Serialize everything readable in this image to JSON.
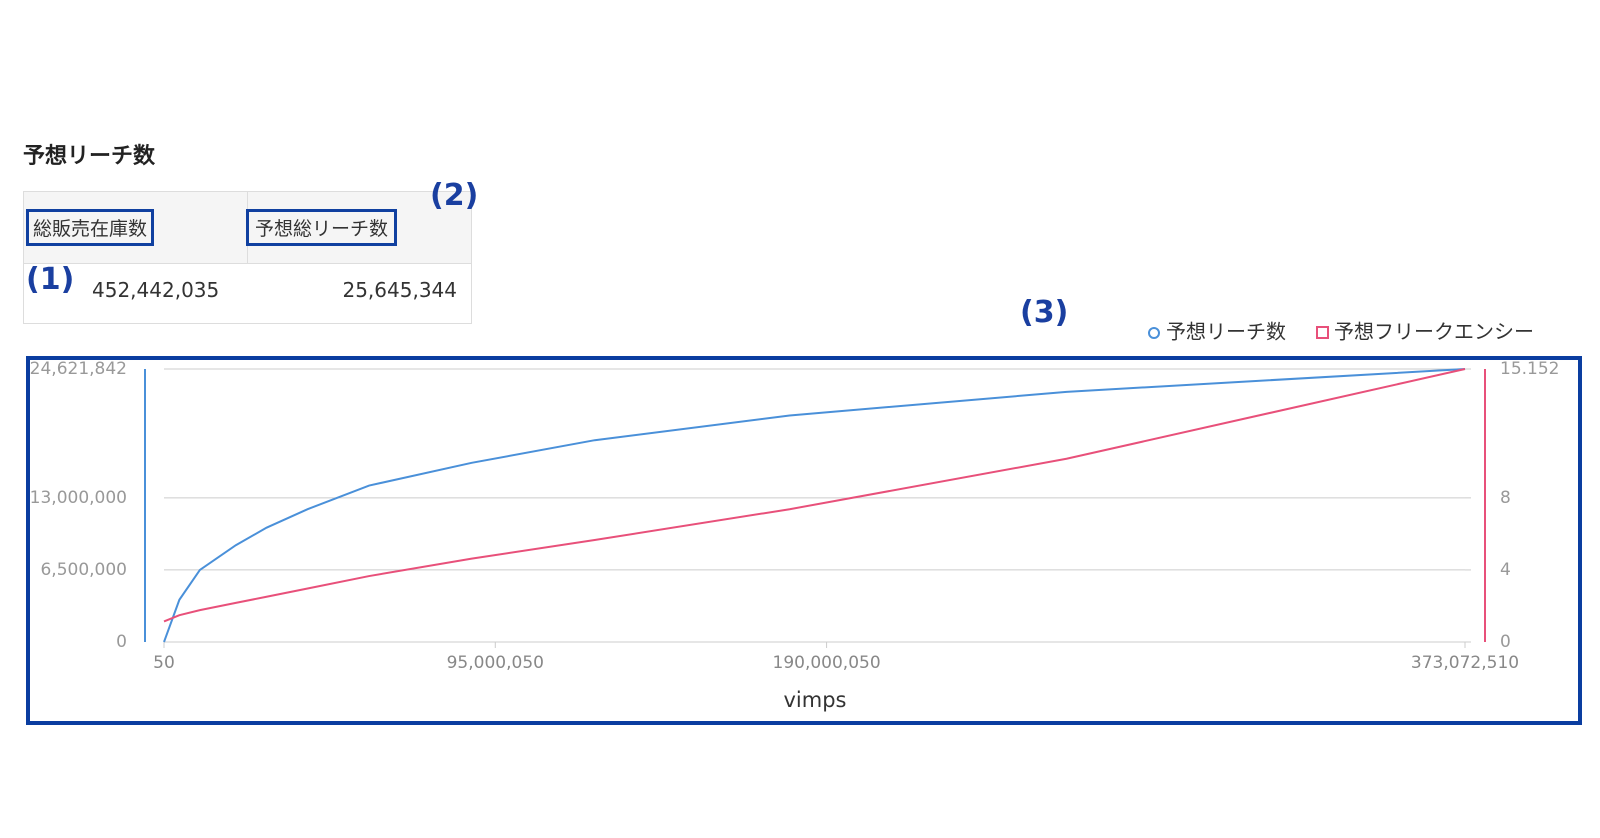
{
  "header": {
    "title": "予想リーチ数"
  },
  "table": {
    "headers": [
      "総販売在庫数",
      "予想総リーチ数"
    ],
    "rows": [
      [
        "452,442,035",
        "25,645,344"
      ]
    ]
  },
  "annotations": [
    "(1)",
    "(2)",
    "(3)"
  ],
  "chart_data": {
    "type": "line",
    "xlabel": "vimps",
    "x": [
      50,
      4410000,
      10290000,
      20590000,
      29410000,
      41180000,
      58820000,
      88240000,
      123500000,
      179400000,
      258800000,
      373072510
    ],
    "xlim": [
      50,
      373072510
    ],
    "xticks": [
      50,
      {
        "value": 95000050,
        "label": "95,000,050"
      },
      {
        "value": 190000050,
        "label": "190,000,050"
      },
      {
        "value": 373072510,
        "label": "373,072,510"
      }
    ],
    "ylim": [
      0,
      24621842
    ],
    "yticks": [
      0,
      {
        "value": 6500000,
        "label": "6,500,000"
      },
      {
        "value": 13000000,
        "label": "13,000,000"
      },
      {
        "value": 24621842,
        "label": "24,621,842"
      }
    ],
    "y2lim": [
      0,
      15.152
    ],
    "y2ticks": [
      0,
      4,
      8,
      15.152
    ],
    "grid": true,
    "legend": "top-right",
    "series": [
      {
        "name": "予想リーチ数",
        "color": "#4a90d9",
        "values": [
          0,
          3810000,
          6500000,
          8730000,
          10310000,
          11980000,
          14110000,
          16160000,
          18200000,
          20430000,
          22560000,
          24621842
        ]
      },
      {
        "name": "予想フリークエンシー",
        "color": "#e8507a",
        "axis": "y2",
        "values": [
          1.14,
          1.49,
          1.77,
          2.17,
          2.51,
          2.97,
          3.66,
          4.63,
          5.66,
          7.37,
          10.17,
          15.152
        ]
      }
    ]
  }
}
